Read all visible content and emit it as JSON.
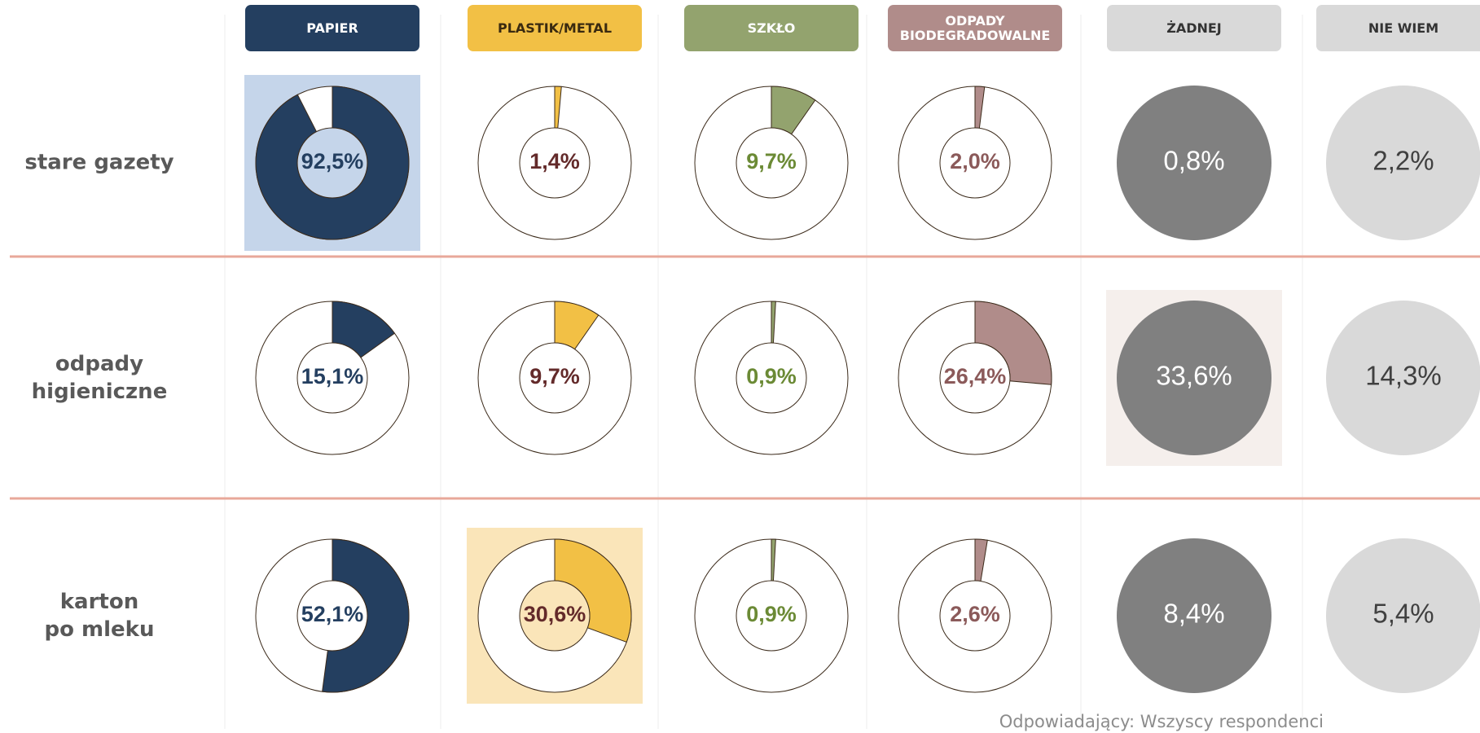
{
  "chart_data": {
    "type": "donut-grid",
    "categories": [
      "stare gazety",
      "odpady higieniczne",
      "karton po mleku"
    ],
    "series": [
      {
        "name": "PAPIER",
        "kind": "donut",
        "color": "#243f60",
        "header_text": "#ffffff",
        "label_color": "#243f60",
        "highlight": 0,
        "highlight_color": "#c5d5ea",
        "values": [
          92.5,
          15.1,
          52.1
        ],
        "value_labels": [
          "92,5%",
          "15,1%",
          "52,1%"
        ]
      },
      {
        "name": "PLASTIK/METAL",
        "kind": "donut",
        "color": "#f2c045",
        "header_text": "#3a2a10",
        "label_color": "#632a2a",
        "highlight": 2,
        "highlight_color": "#fae5b9",
        "values": [
          1.4,
          9.7,
          30.6
        ],
        "value_labels": [
          "1,4%",
          "9,7%",
          "30,6%"
        ]
      },
      {
        "name": "SZKŁO",
        "kind": "donut",
        "color": "#93a36e",
        "header_text": "#ffffff",
        "label_color": "#6b8a35",
        "values": [
          9.7,
          0.9,
          0.9
        ],
        "value_labels": [
          "9,7%",
          "0,9%",
          "0,9%"
        ]
      },
      {
        "name": "ODPADY BIODEGRADOWALNE",
        "kind": "donut",
        "color": "#b08c8a",
        "header_text": "#ffffff",
        "label_color": "#8b5a5a",
        "values": [
          2.0,
          26.4,
          2.6
        ],
        "value_labels": [
          "2,0%",
          "26,4%",
          "2,6%"
        ]
      },
      {
        "name": "ŻADNEJ",
        "kind": "circle",
        "color": "#808080",
        "header_color": "#d9d9d9",
        "header_text": "#333333",
        "label_color": "#ffffff",
        "highlight": 1,
        "highlight_color": "#f5efec",
        "values": [
          0.8,
          33.6,
          8.4
        ],
        "value_labels": [
          "0,8%",
          "33,6%",
          "8,4%"
        ]
      },
      {
        "name": "NIE WIEM",
        "kind": "circle",
        "color": "#d9d9d9",
        "header_color": "#d9d9d9",
        "header_text": "#333333",
        "label_color": "#404040",
        "values": [
          2.2,
          14.3,
          5.4
        ],
        "value_labels": [
          "2,2%",
          "14,3%",
          "5,4%"
        ]
      }
    ],
    "source": "Odpowiadający: Wszyscy respondenci"
  }
}
